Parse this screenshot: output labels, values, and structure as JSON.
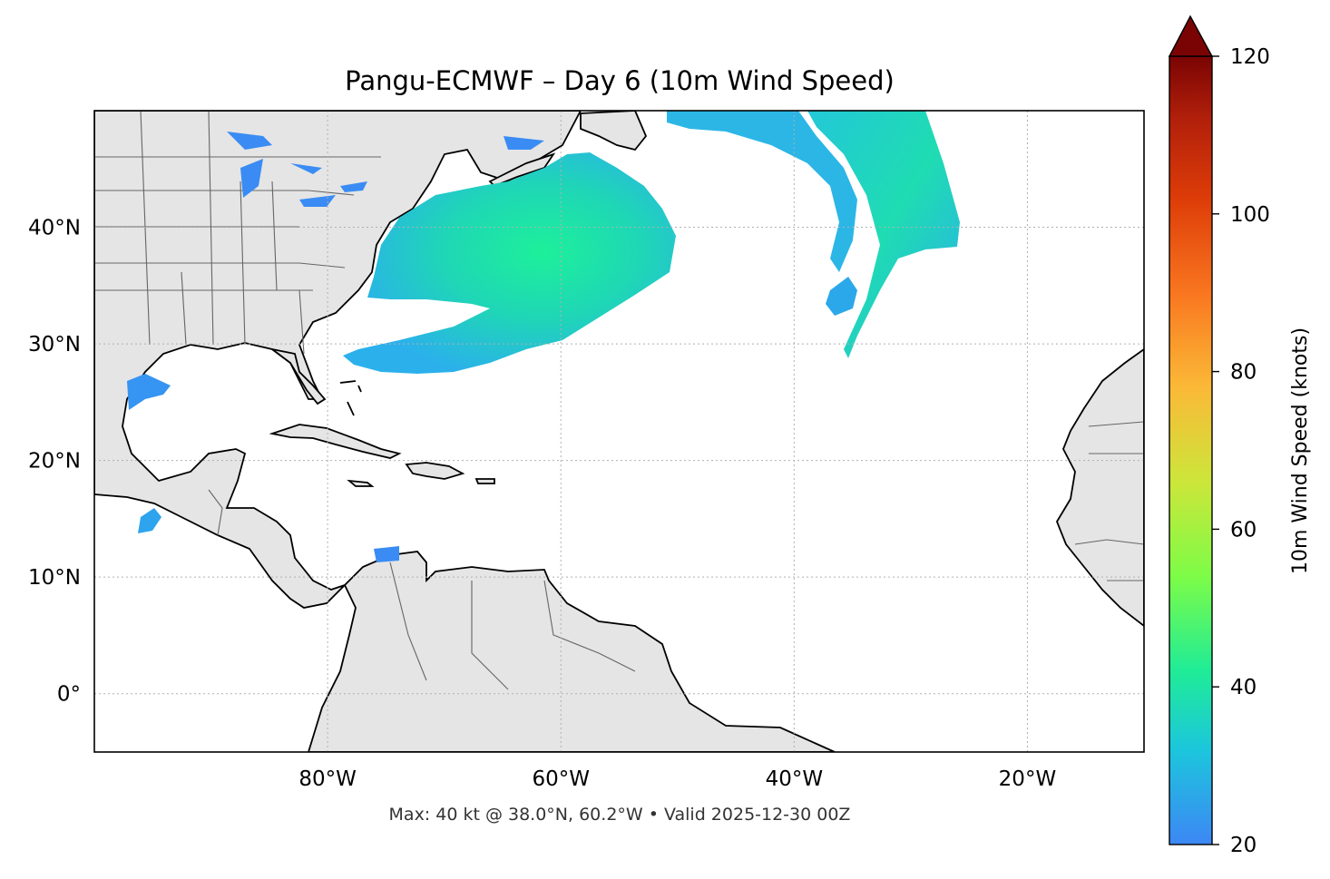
{
  "title": "Pangu-ECMWF – Day 6 (10m Wind Speed)",
  "footer": "Max: 40 kt @ 38.0°N, 60.2°W • Valid 2025-12-30 00Z",
  "map": {
    "lon_range": [
      -100,
      -10
    ],
    "lat_range": [
      -5,
      50
    ],
    "x_ticks": [
      {
        "value": -80,
        "label": "80°W"
      },
      {
        "value": -60,
        "label": "60°W"
      },
      {
        "value": -40,
        "label": "40°W"
      },
      {
        "value": -20,
        "label": "20°W"
      }
    ],
    "y_ticks": [
      {
        "value": 40,
        "label": "40°N"
      },
      {
        "value": 30,
        "label": "30°N"
      },
      {
        "value": 20,
        "label": "20°N"
      },
      {
        "value": 10,
        "label": "10°N"
      },
      {
        "value": 0,
        "label": "0°"
      }
    ],
    "grid": true,
    "land_color": "#e5e5e5",
    "coast_color": "#000000",
    "border_color": "#666666"
  },
  "colorbar": {
    "label": "10m Wind Speed (knots)",
    "range": [
      20,
      120
    ],
    "extend": "max",
    "ticks": [
      {
        "value": 20,
        "label": "20"
      },
      {
        "value": 40,
        "label": "40"
      },
      {
        "value": 60,
        "label": "60"
      },
      {
        "value": 80,
        "label": "80"
      },
      {
        "value": 100,
        "label": "100"
      },
      {
        "value": 120,
        "label": "120"
      }
    ],
    "colormap": [
      {
        "at": 0.0,
        "color": "#3d87f5"
      },
      {
        "at": 0.12,
        "color": "#1cc6dc"
      },
      {
        "at": 0.22,
        "color": "#1fec97"
      },
      {
        "at": 0.34,
        "color": "#7dfc47"
      },
      {
        "at": 0.46,
        "color": "#cce63a"
      },
      {
        "at": 0.58,
        "color": "#fbb937"
      },
      {
        "at": 0.7,
        "color": "#f9761f"
      },
      {
        "at": 0.82,
        "color": "#dd3c08"
      },
      {
        "at": 0.92,
        "color": "#b2200b"
      },
      {
        "at": 1.0,
        "color": "#7a0403"
      }
    ]
  },
  "wind_swaths": [
    {
      "name": "atlantic-storm-swath",
      "peak_kt": 40
    },
    {
      "name": "north-atlantic-band",
      "peak_kt": 34
    },
    {
      "name": "small-patches",
      "peak_kt": 25
    }
  ]
}
